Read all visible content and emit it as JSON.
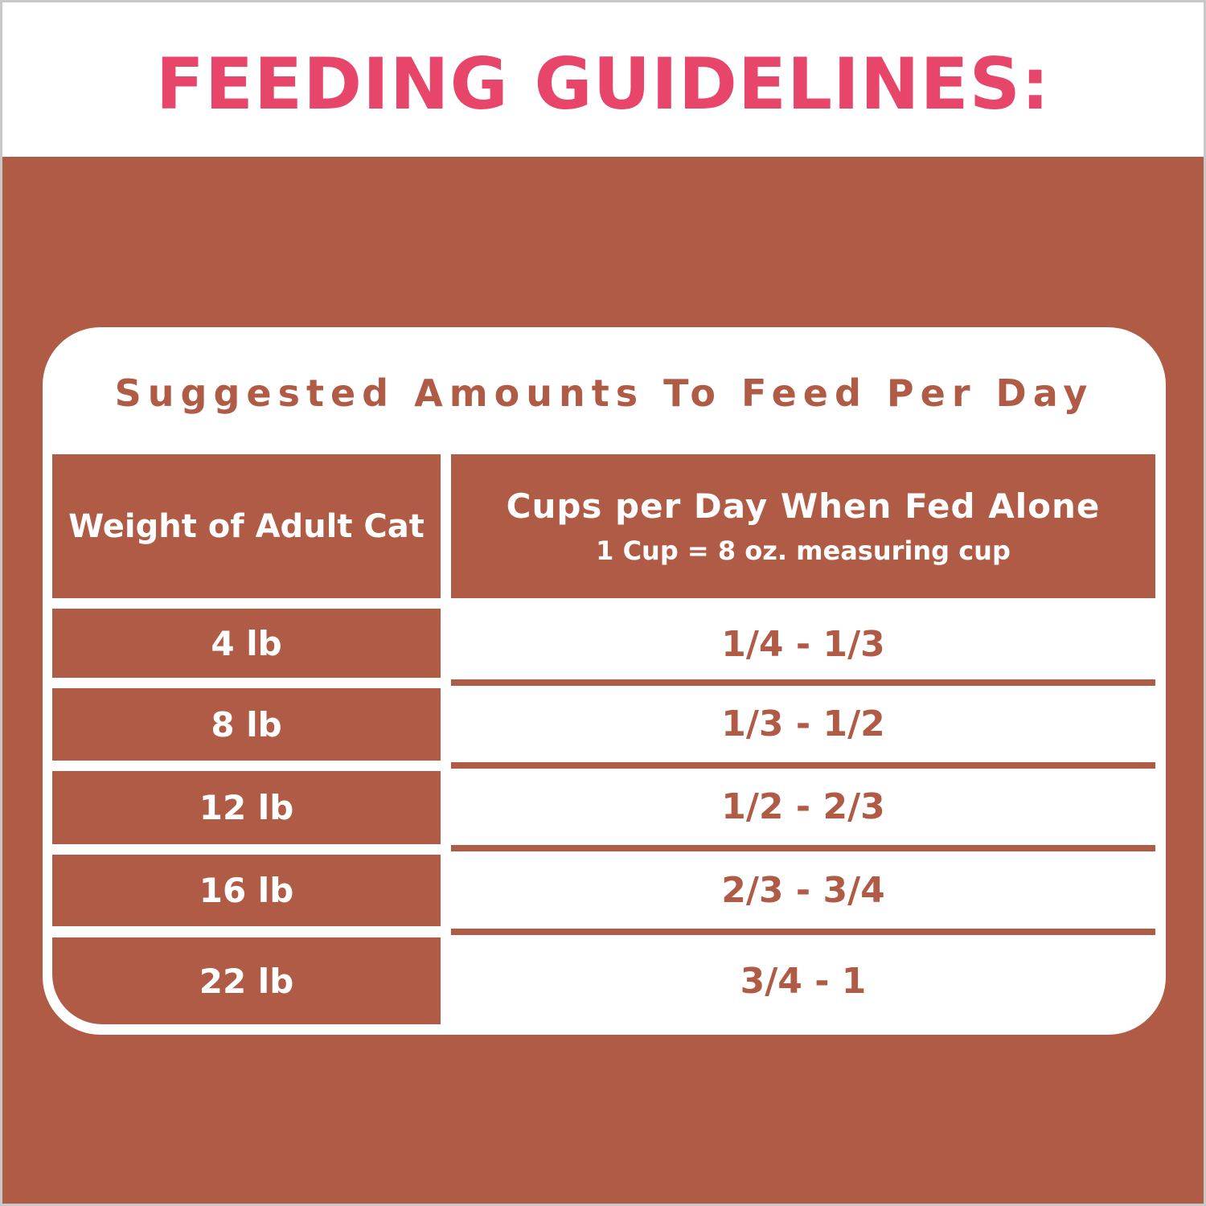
{
  "title": "FEEDING GUIDELINES:",
  "subtitle": "Suggested Amounts To Feed Per Day",
  "table": {
    "headers": {
      "weight": "Weight of Adult Cat",
      "cups": "Cups per Day When Fed Alone",
      "cups_note": "1 Cup = 8 oz. measuring cup"
    },
    "rows": [
      {
        "weight": "4 lb",
        "cups": "1/4 - 1/3"
      },
      {
        "weight": "8 lb",
        "cups": "1/3 - 1/2"
      },
      {
        "weight": "12 lb",
        "cups": "1/2 - 2/3"
      },
      {
        "weight": "16 lb",
        "cups": "2/3 - 3/4"
      },
      {
        "weight": "22 lb",
        "cups": "3/4 - 1"
      }
    ]
  },
  "colors": {
    "brand_brown": "#b05b45",
    "title_pink": "#e8456b"
  }
}
